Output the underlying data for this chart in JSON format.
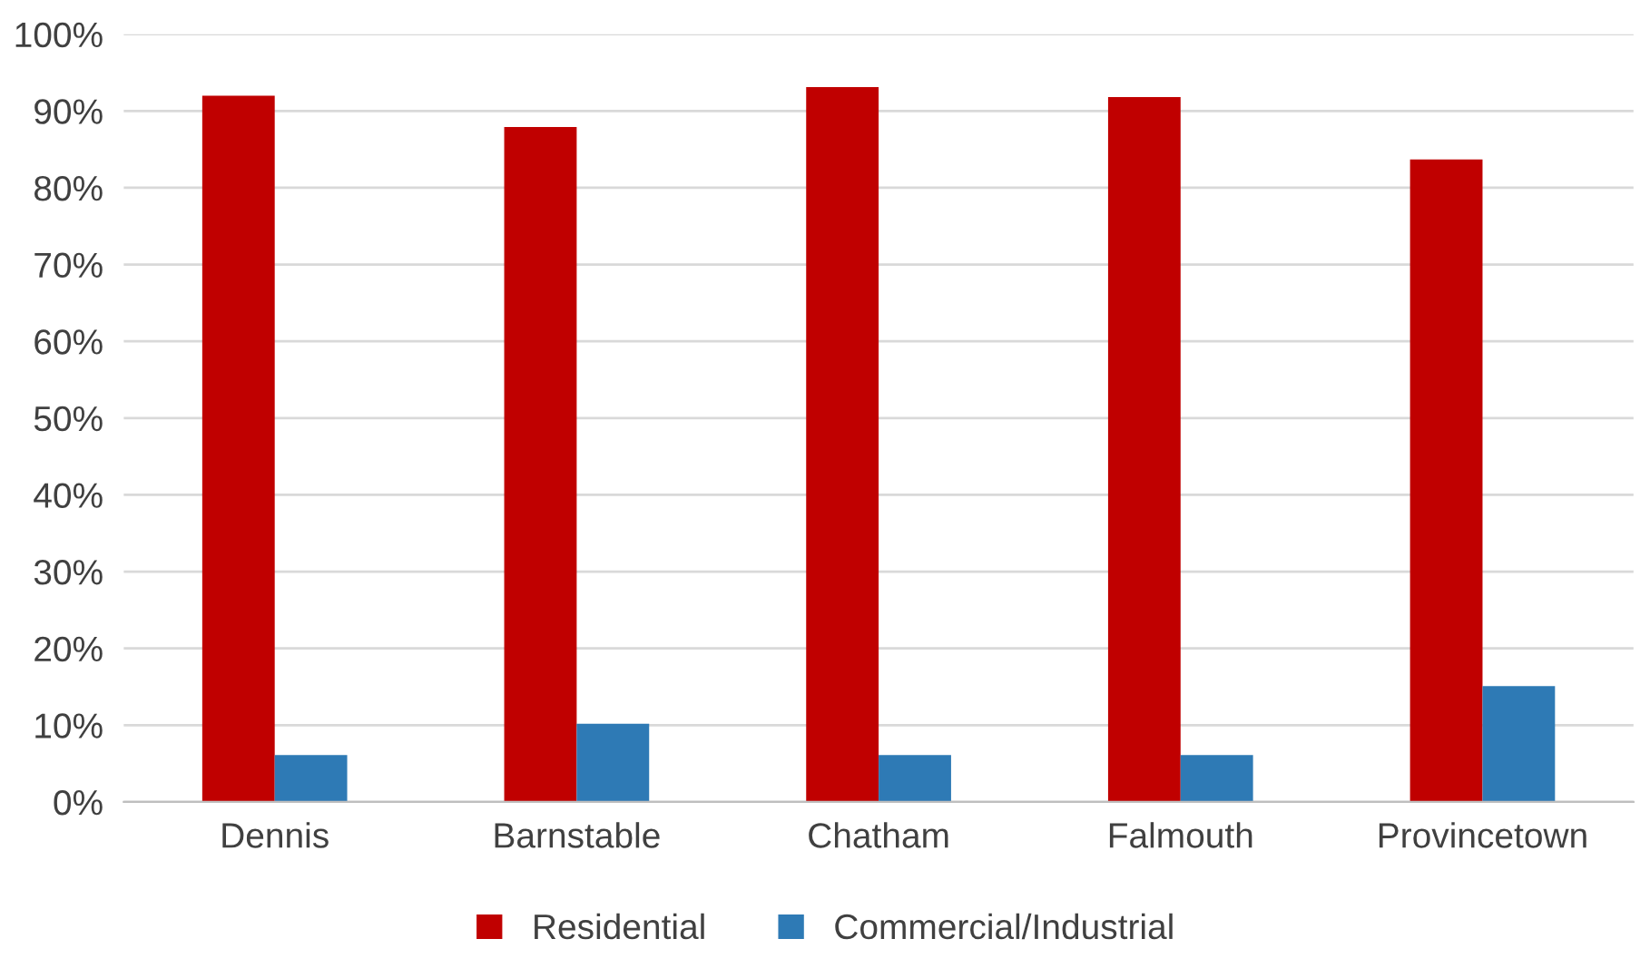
{
  "chart_data": {
    "type": "bar",
    "categories": [
      "Dennis",
      "Barnstable",
      "Chatham",
      "Falmouth",
      "Provincetown"
    ],
    "series": [
      {
        "name": "Residential",
        "color": "#c00000",
        "values": [
          92.0,
          87.9,
          93.1,
          91.8,
          83.7
        ]
      },
      {
        "name": "Commercial/Industrial",
        "color": "#2e7ab5",
        "values": [
          6.1,
          10.2,
          6.1,
          6.1,
          15.1
        ]
      }
    ],
    "ylim": [
      0,
      100
    ],
    "yticks": [
      {
        "value": 0,
        "label": "0%"
      },
      {
        "value": 10,
        "label": "10%"
      },
      {
        "value": 20,
        "label": "20%"
      },
      {
        "value": 30,
        "label": "30%"
      },
      {
        "value": 40,
        "label": "40%"
      },
      {
        "value": 50,
        "label": "50%"
      },
      {
        "value": 60,
        "label": "60%"
      },
      {
        "value": 70,
        "label": "70%"
      },
      {
        "value": 80,
        "label": "80%"
      },
      {
        "value": 90,
        "label": "90%"
      },
      {
        "value": 100,
        "label": "100%"
      }
    ],
    "grid": "y",
    "legend": "bottom"
  }
}
